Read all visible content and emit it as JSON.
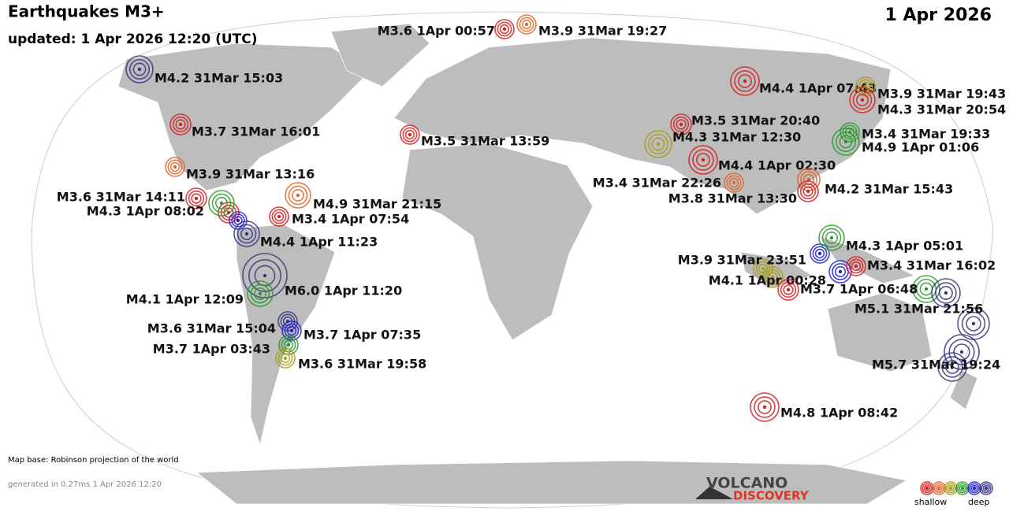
{
  "header": {
    "title": "Earthquakes M3+",
    "updated": "updated:  1 Apr 2026 12:20 (UTC)",
    "date": "1 Apr 2026"
  },
  "quakes": [
    {
      "label": "M3.6  1Apr 00:57"
    },
    {
      "label": "M3.9 31Mar 19:27"
    },
    {
      "label": "M4.2 31Mar 15:03"
    },
    {
      "label": "M4.4  1Apr 07:43"
    },
    {
      "label": "M3.9 31Mar 19:43"
    },
    {
      "label": "M4.3 31Mar 20:54"
    },
    {
      "label": "M3.7 31Mar 16:01"
    },
    {
      "label": "M3.5 31Mar 20:40"
    },
    {
      "label": "M3.5 31Mar 13:59"
    },
    {
      "label": "M4.3 31Mar 12:30"
    },
    {
      "label": "M3.4 31Mar 19:33"
    },
    {
      "label": "M4.9  1Apr 01:06"
    },
    {
      "label": "M4.4  1Apr 02:30"
    },
    {
      "label": "M3.9 31Mar 13:16"
    },
    {
      "label": "M3.4 31Mar 22:26"
    },
    {
      "label": "M4.2 31Mar 15:43"
    },
    {
      "label": "M3.8 31Mar 13:30"
    },
    {
      "label": "M3.6 31Mar 14:11"
    },
    {
      "label": "M4.9 31Mar 21:15"
    },
    {
      "label": "M4.3  1Apr 08:02"
    },
    {
      "label": "M3.4  1Apr 07:54"
    },
    {
      "label": "M4.4  1Apr 11:23"
    },
    {
      "label": "M4.3  1Apr 05:01"
    },
    {
      "label": "M3.9 31Mar 23:51"
    },
    {
      "label": "M3.4 31Mar 16:02"
    },
    {
      "label": "M4.1  1Apr 00:28"
    },
    {
      "label": "M6.0  1Apr 11:20"
    },
    {
      "label": "M4.1  1Apr 12:09"
    },
    {
      "label": "M3.7  1Apr 06:48"
    },
    {
      "label": "M5.1 31Mar 21:56"
    },
    {
      "label": "M3.6 31Mar 15:04"
    },
    {
      "label": "M3.7  1Apr 07:35"
    },
    {
      "label": "M3.7  1Apr 03:43"
    },
    {
      "label": "M3.6 31Mar 19:58"
    },
    {
      "label": "M5.7 31Mar 19:24"
    },
    {
      "label": "M4.8  1Apr 08:42"
    }
  ],
  "footer": {
    "map_base": "Map base: Robinson projection of the world",
    "generated": "generated in 0.27ms  1 Apr 2026 12:20"
  },
  "logo": {
    "line1": "VOLCANO",
    "line2": "DISCOVERY"
  },
  "legend": {
    "shallow": "shallow",
    "deep": "deep"
  }
}
